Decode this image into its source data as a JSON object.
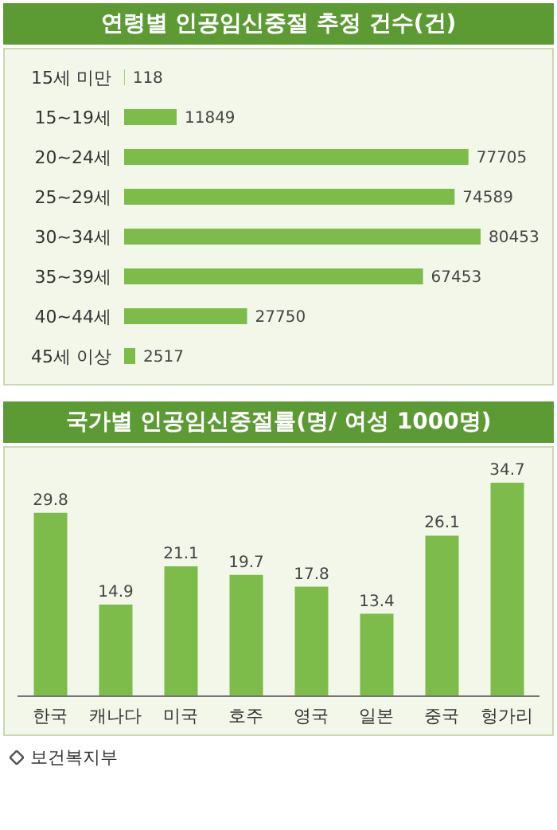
{
  "chart_data": [
    {
      "type": "bar",
      "orientation": "horizontal",
      "title": "연령별 인공임신중절 추정 건수(건)",
      "categories": [
        "15세 미만",
        "15~19세",
        "20~24세",
        "25~29세",
        "30~34세",
        "35~39세",
        "40~44세",
        "45세 이상"
      ],
      "values": [
        118,
        11849,
        77705,
        74589,
        80453,
        67453,
        27750,
        2517
      ],
      "color": "#7dbb4a",
      "data_labels": true
    },
    {
      "type": "bar",
      "title": "국가별 인공임신중절률(명/ 여성 1000명)",
      "categories": [
        "한국",
        "캐나다",
        "미국",
        "호주",
        "영국",
        "일본",
        "중국",
        "헝가리"
      ],
      "values": [
        29.8,
        14.9,
        21.1,
        19.7,
        17.8,
        13.4,
        26.1,
        34.7
      ],
      "color": "#7dbb4a",
      "data_labels": true,
      "annotations": [
        "보건복지부"
      ]
    }
  ]
}
